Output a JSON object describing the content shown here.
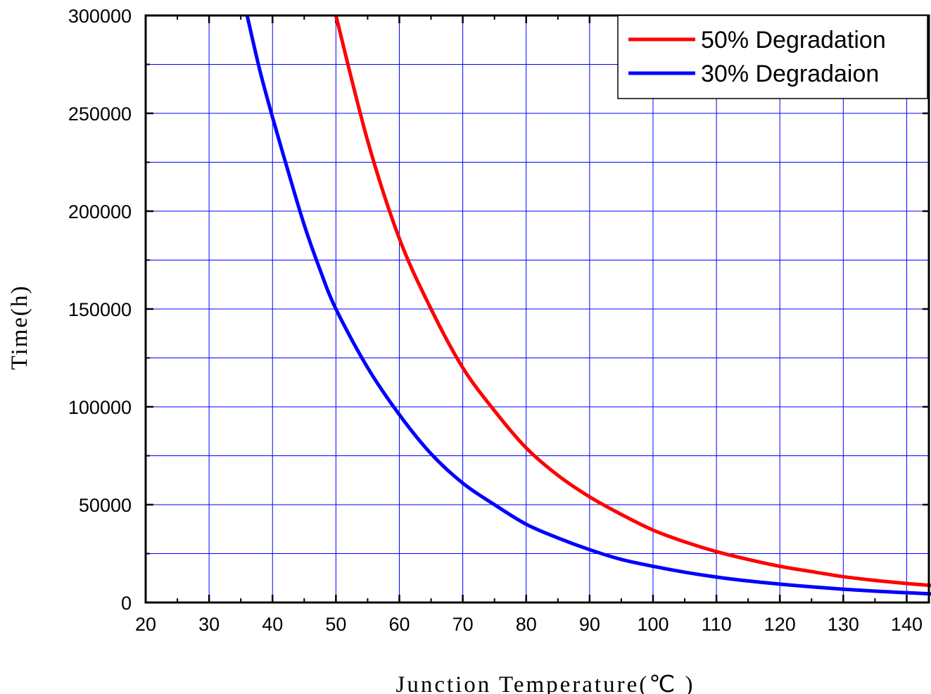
{
  "chart_data": {
    "type": "line",
    "xlabel": "Junction Temperature(℃ )",
    "ylabel": "Time(h)",
    "xlim": [
      20,
      144
    ],
    "ylim": [
      0,
      300000
    ],
    "x_ticks": [
      20,
      30,
      40,
      50,
      60,
      70,
      80,
      90,
      100,
      110,
      120,
      130,
      140
    ],
    "y_ticks": [
      0,
      50000,
      100000,
      150000,
      200000,
      250000,
      300000
    ],
    "grid": true,
    "grid_color": "#0000ff",
    "legend_position": "top-right",
    "series": [
      {
        "name": "50% Degradation",
        "color": "#ff0000",
        "x": [
          50,
          55,
          60,
          65,
          70,
          75,
          80,
          85,
          90,
          95,
          100,
          105,
          110,
          115,
          120,
          125,
          130,
          135,
          140,
          144
        ],
        "y": [
          300000,
          236000,
          186000,
          150000,
          120000,
          98000,
          79000,
          65000,
          54000,
          45000,
          37000,
          31000,
          26000,
          22000,
          18500,
          15800,
          13200,
          11300,
          9700,
          8700
        ]
      },
      {
        "name": "30% Degradaion",
        "color": "#0000ff",
        "x": [
          36,
          38,
          40,
          42.5,
          45,
          47.5,
          50,
          55,
          60,
          65,
          70,
          75,
          80,
          85,
          90,
          95,
          100,
          105,
          110,
          115,
          120,
          125,
          130,
          135,
          140,
          144
        ],
        "y": [
          300000,
          272000,
          248000,
          220000,
          193000,
          170000,
          150000,
          120000,
          96000,
          76000,
          61000,
          50000,
          40000,
          33000,
          27000,
          22000,
          18500,
          15500,
          13000,
          11000,
          9400,
          8000,
          6800,
          5800,
          5000,
          4400
        ]
      }
    ]
  }
}
